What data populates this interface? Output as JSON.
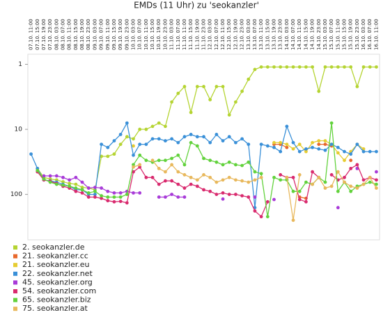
{
  "chart_data": {
    "type": "line",
    "title": "EMDs (11 Uhr) zu 'seokanzler'",
    "log_scale": true,
    "y_inverted": true,
    "grid": false,
    "legend": "bottom",
    "ylim": [
      0.7,
      500
    ],
    "yticks": [
      1,
      10,
      100
    ],
    "categories": [
      "07.10. 11:00",
      "07.10. 15:00",
      "07.10. 19:00",
      "07.10. 23:00",
      "08.10. 03:00",
      "08.10. 07:00",
      "08.10. 11:00",
      "08.10. 15:00",
      "08.10. 19:00",
      "08.10. 23:00",
      "09.10. 03:00",
      "09.10. 07:00",
      "09.10. 11:00",
      "09.10. 15:00",
      "09.10. 19:00",
      "09.10. 23:00",
      "10.10. 03:00",
      "10.10. 07:00",
      "10.10. 11:00",
      "10.10. 15:00",
      "10.10. 19:00",
      "10.10. 23:00",
      "11.10. 03:00",
      "11.10. 07:00",
      "11.10. 11:00",
      "11.10. 15:00",
      "11.10. 19:00",
      "11.10. 23:00",
      "12.10. 03:00",
      "12.10. 07:00",
      "12.10. 11:00",
      "12.10. 15:00",
      "12.10. 19:00",
      "12.10. 23:00",
      "13.10. 03:00",
      "13.10. 07:00",
      "13.10. 11:00",
      "13.10. 15:00",
      "13.10. 19:00",
      "13.10. 23:00",
      "14.10. 03:00",
      "14.10. 07:00",
      "14.10. 11:00",
      "14.10. 15:00",
      "14.10. 19:00",
      "14.10. 23:00",
      "15.10. 03:00",
      "15.10. 07:00",
      "15.10. 11:00",
      "15.10. 15:00",
      "15.10. 19:00",
      "15.10. 23:00",
      "16.10. 03:00",
      "16.10. 07:00",
      "16.10. 11:00"
    ],
    "series": [
      {
        "name": "2. seokanzler.de",
        "color": "#b5d432",
        "values": [
          null,
          40,
          55,
          58,
          60,
          64,
          68,
          70,
          78,
          80,
          85,
          26,
          26,
          24,
          17,
          13,
          14,
          10,
          10,
          9,
          8,
          9,
          3.8,
          2.8,
          2.2,
          5.5,
          2.2,
          2.2,
          3.5,
          2.2,
          2.2,
          6,
          3.8,
          2.6,
          1.7,
          1.2,
          1.1,
          1.1,
          1.1,
          1.1,
          1.1,
          1.1,
          1.1,
          1.1,
          1.1,
          2.6,
          1.1,
          1.1,
          1.1,
          1.1,
          1.1,
          2.2,
          1.1,
          1.1,
          1.1
        ]
      },
      {
        "name": "21. seokanzler.cc",
        "color": "#e8682c",
        "values": [
          null,
          null,
          null,
          null,
          null,
          null,
          null,
          null,
          null,
          null,
          null,
          null,
          null,
          null,
          null,
          null,
          null,
          null,
          null,
          null,
          null,
          null,
          null,
          null,
          null,
          null,
          null,
          null,
          null,
          null,
          null,
          null,
          null,
          null,
          null,
          null,
          null,
          null,
          17,
          17,
          19,
          null,
          110,
          115,
          null,
          17,
          17,
          18,
          null,
          null,
          30,
          null,
          null,
          null,
          null
        ]
      },
      {
        "name": "21. seokanzler.eu",
        "color": "#e6cc32",
        "values": [
          null,
          null,
          null,
          null,
          null,
          null,
          null,
          null,
          null,
          null,
          null,
          null,
          null,
          null,
          null,
          null,
          18,
          null,
          null,
          null,
          null,
          null,
          null,
          null,
          null,
          null,
          null,
          null,
          null,
          null,
          null,
          null,
          null,
          null,
          null,
          null,
          null,
          null,
          16,
          16,
          17,
          20,
          17,
          22,
          16,
          15,
          15,
          17,
          23,
          30,
          22,
          17,
          20,
          null,
          null
        ]
      },
      {
        "name": "22. seokanzler.net",
        "color": "#3a90d8",
        "values": [
          24,
          40,
          60,
          62,
          65,
          70,
          75,
          85,
          85,
          100,
          100,
          17,
          19,
          15,
          12,
          8,
          25,
          17,
          17,
          14,
          14,
          15,
          14,
          16,
          13,
          12,
          13,
          13,
          16,
          12,
          15,
          13,
          16,
          14,
          17,
          160,
          17,
          18,
          19,
          22,
          9,
          16,
          22,
          20,
          19,
          20,
          21,
          17,
          19,
          22,
          24,
          17,
          22,
          22,
          22
        ]
      },
      {
        "name": "45. seokanzler.org",
        "color": "#a83ad8",
        "values": [
          null,
          null,
          52,
          52,
          52,
          55,
          60,
          55,
          65,
          80,
          78,
          80,
          90,
          95,
          95,
          90,
          95,
          95,
          null,
          null,
          110,
          110,
          100,
          110,
          110,
          null,
          null,
          null,
          null,
          null,
          118,
          null,
          null,
          null,
          null,
          110,
          null,
          null,
          120,
          null,
          null,
          null,
          null,
          null,
          null,
          null,
          null,
          null,
          160,
          null,
          null,
          40,
          null,
          null,
          45
        ]
      },
      {
        "name": "54. seokanzler.com",
        "color": "#d92a6e",
        "values": [
          null,
          45,
          60,
          63,
          68,
          75,
          80,
          90,
          95,
          110,
          110,
          115,
          125,
          130,
          128,
          135,
          45,
          38,
          55,
          55,
          70,
          62,
          62,
          70,
          80,
          70,
          75,
          85,
          90,
          100,
          95,
          100,
          100,
          105,
          110,
          180,
          220,
          130,
          null,
          50,
          55,
          55,
          120,
          130,
          45,
          55,
          null,
          50,
          60,
          55,
          40,
          35,
          60,
          55,
          60
        ]
      },
      {
        "name": "65. seokanzler.biz",
        "color": "#62d23c",
        "values": [
          null,
          43,
          58,
          65,
          70,
          72,
          75,
          80,
          85,
          95,
          90,
          105,
          110,
          110,
          110,
          100,
          35,
          25,
          30,
          32,
          30,
          30,
          28,
          25,
          35,
          16,
          18,
          28,
          30,
          32,
          35,
          32,
          35,
          36,
          32,
          45,
          48,
          220,
          55,
          60,
          60,
          90,
          90,
          65,
          70,
          55,
          65,
          8,
          90,
          65,
          90,
          75,
          70,
          65,
          70
        ]
      },
      {
        "name": "75. seokanzler.at",
        "color": "#e8b85c",
        "values": [
          null,
          null,
          null,
          null,
          null,
          null,
          null,
          null,
          null,
          null,
          null,
          null,
          null,
          null,
          null,
          null,
          38,
          35,
          null,
          30,
          40,
          45,
          35,
          45,
          50,
          55,
          60,
          50,
          55,
          65,
          60,
          55,
          60,
          62,
          65,
          60,
          55,
          null,
          null,
          null,
          55,
          250,
          50,
          null,
          70,
          55,
          80,
          75,
          45,
          65,
          75,
          80,
          70,
          55,
          80
        ]
      }
    ]
  }
}
